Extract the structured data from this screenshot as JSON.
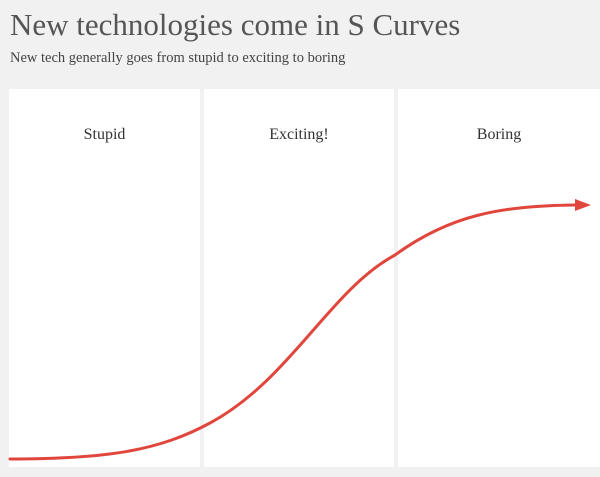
{
  "header": {
    "title": "New technologies come in S Curves",
    "subtitle": "New tech generally goes from stupid to exciting to boring"
  },
  "phases": [
    {
      "label": "Stupid"
    },
    {
      "label": "Exciting!"
    },
    {
      "label": "Boring"
    }
  ],
  "colors": {
    "curve": "#e0463c",
    "background": "#f1f1f1",
    "panel": "#ffffff"
  }
}
